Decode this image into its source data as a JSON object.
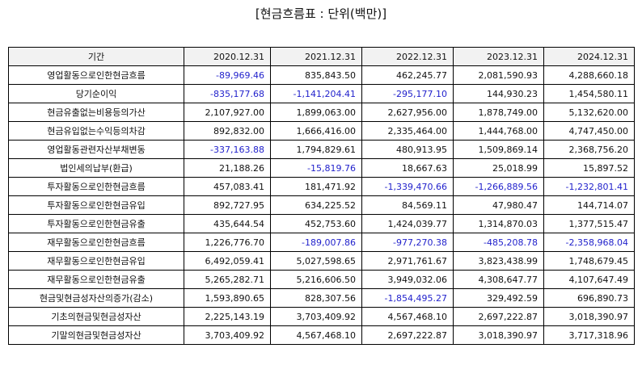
{
  "title": "[현금흐름표 : 단위(백만)]",
  "colors": {
    "negative": "#2222cc",
    "header_bg": "#f2f2f2"
  },
  "table": {
    "headers": [
      "기간",
      "2020.12.31",
      "2021.12.31",
      "2022.12.31",
      "2023.12.31",
      "2024.12.31"
    ],
    "rows": [
      {
        "label": "영업활동으로인한현금흐름",
        "values": [
          "-89,969.46",
          "835,843.50",
          "462,245.77",
          "2,081,590.93",
          "4,288,660.18"
        ]
      },
      {
        "label": "당기순이익",
        "values": [
          "-835,177.68",
          "-1,141,204.41",
          "-295,177.10",
          "144,930.23",
          "1,454,580.11"
        ]
      },
      {
        "label": "현금유출없는비용등의가산",
        "values": [
          "2,107,927.00",
          "1,899,063.00",
          "2,627,956.00",
          "1,878,749.00",
          "5,132,620.00"
        ]
      },
      {
        "label": "현금유입없는수익등의차감",
        "values": [
          "892,832.00",
          "1,666,416.00",
          "2,335,464.00",
          "1,444,768.00",
          "4,747,450.00"
        ]
      },
      {
        "label": "영업활동관련자산부채변동",
        "values": [
          "-337,163.88",
          "1,794,829.61",
          "480,913.95",
          "1,509,869.14",
          "2,368,756.20"
        ]
      },
      {
        "label": "법인세의납부(환급)",
        "values": [
          "21,188.26",
          "-15,819.76",
          "18,667.63",
          "25,018.99",
          "15,897.52"
        ]
      },
      {
        "label": "투자활동으로인한현금흐름",
        "values": [
          "457,083.41",
          "181,471.92",
          "-1,339,470.66",
          "-1,266,889.56",
          "-1,232,801.41"
        ]
      },
      {
        "label": "투자활동으로인한현금유입",
        "values": [
          "892,727.95",
          "634,225.52",
          "84,569.11",
          "47,980.47",
          "144,714.07"
        ]
      },
      {
        "label": "투자활동으로인한현금유출",
        "values": [
          "435,644.54",
          "452,753.60",
          "1,424,039.77",
          "1,314,870.03",
          "1,377,515.47"
        ]
      },
      {
        "label": "재무활동으로인한현금흐름",
        "values": [
          "1,226,776.70",
          "-189,007.86",
          "-977,270.38",
          "-485,208.78",
          "-2,358,968.04"
        ]
      },
      {
        "label": "재무활동으로인한현금유입",
        "values": [
          "6,492,059.41",
          "5,027,598.65",
          "2,971,761.67",
          "3,823,438.99",
          "1,748,679.45"
        ]
      },
      {
        "label": "재무활동으로인한현금유출",
        "values": [
          "5,265,282.71",
          "5,216,606.50",
          "3,949,032.06",
          "4,308,647.77",
          "4,107,647.49"
        ]
      },
      {
        "label": "현금및현금성자산의증가(감소)",
        "values": [
          "1,593,890.65",
          "828,307.56",
          "-1,854,495.27",
          "329,492.59",
          "696,890.73"
        ]
      },
      {
        "label": "기초의현금및현금성자산",
        "values": [
          "2,225,143.19",
          "3,703,409.92",
          "4,567,468.10",
          "2,697,222.87",
          "3,018,390.97"
        ]
      },
      {
        "label": "기말의현금및현금성자산",
        "values": [
          "3,703,409.92",
          "4,567,468.10",
          "2,697,222.87",
          "3,018,390.97",
          "3,717,318.96"
        ]
      }
    ]
  }
}
